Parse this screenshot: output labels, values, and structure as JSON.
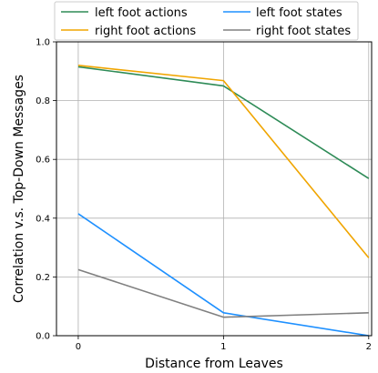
{
  "chart_data": {
    "type": "line",
    "xlabel": "Distance from Leaves",
    "ylabel": "Correlation v.s. Top-Down Messages",
    "x": [
      0,
      1,
      2
    ],
    "xlim": [
      -0.15,
      2.02
    ],
    "ylim": [
      0.0,
      1.0
    ],
    "x_ticks": [
      0,
      1,
      2
    ],
    "y_ticks": [
      0.0,
      0.2,
      0.4,
      0.6,
      0.8,
      1.0
    ],
    "x_tick_labels": [
      "0",
      "1",
      "2"
    ],
    "y_tick_labels": [
      "0.0",
      "0.2",
      "0.4",
      "0.6",
      "0.8",
      "1.0"
    ],
    "grid": true,
    "legend_position": "top, outside plot, 2 columns",
    "series": [
      {
        "name": "left foot actions",
        "color": "#2e8b57",
        "values": [
          0.915,
          0.85,
          0.535
        ]
      },
      {
        "name": "right foot actions",
        "color": "#f0a500",
        "values": [
          0.92,
          0.868,
          0.265
        ]
      },
      {
        "name": "left foot states",
        "color": "#1e90ff",
        "values": [
          0.415,
          0.078,
          0.0
        ]
      },
      {
        "name": "right foot states",
        "color": "#808080",
        "values": [
          0.225,
          0.063,
          0.078
        ]
      }
    ]
  }
}
